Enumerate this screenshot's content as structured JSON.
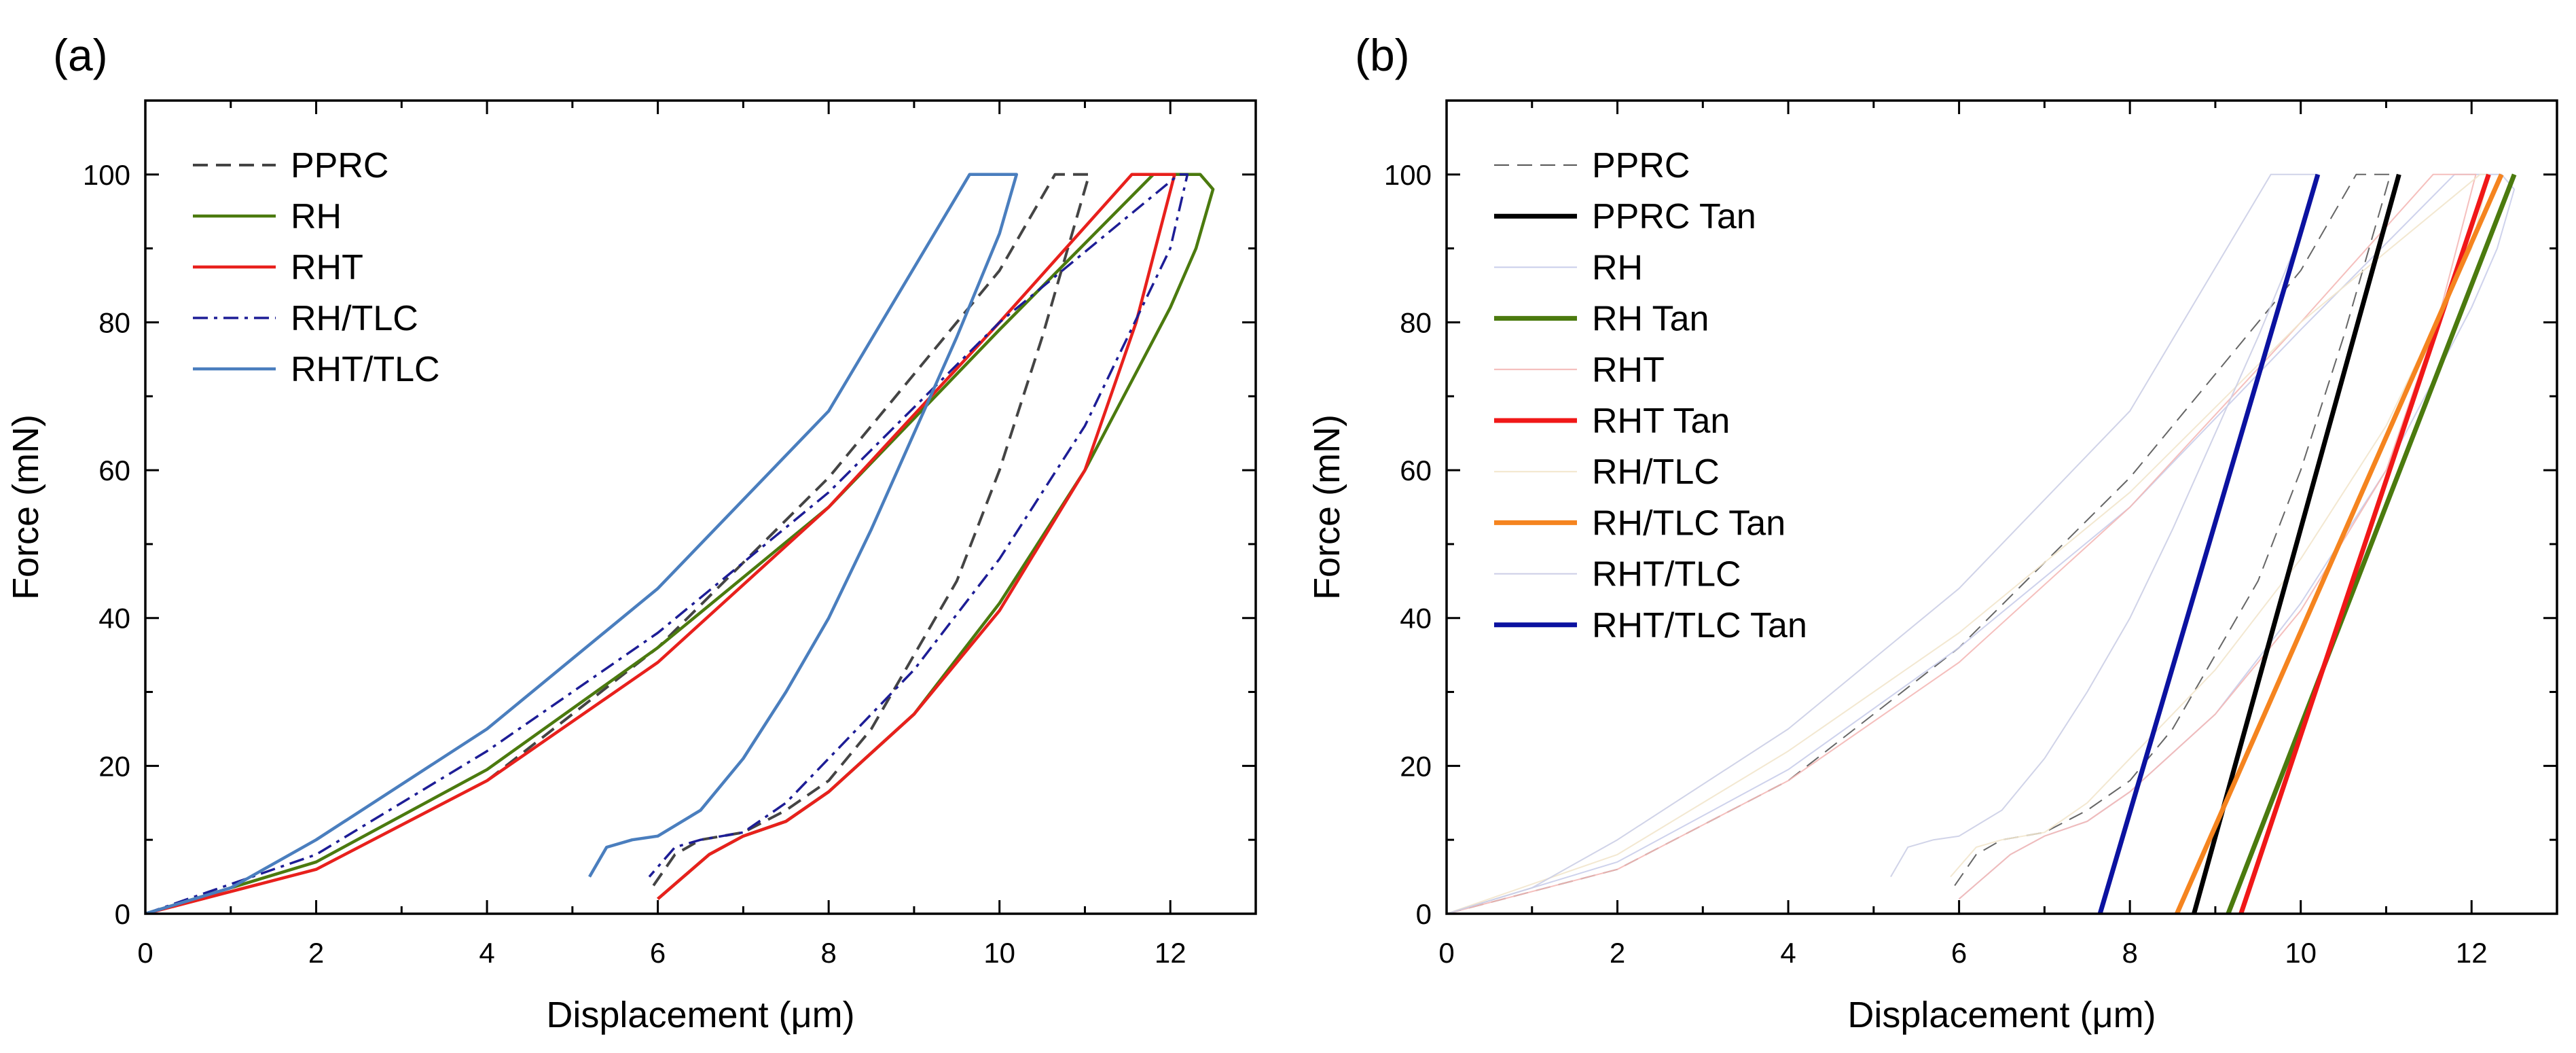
{
  "chart_data": [
    {
      "type": "line",
      "panel_label": "(a)",
      "xlabel": "Displacement (μm)",
      "ylabel": "Force (mN)",
      "xlim": [
        0,
        13
      ],
      "ylim": [
        0,
        110
      ],
      "xticks": [
        "0",
        "2",
        "4",
        "6",
        "8",
        "10",
        "12"
      ],
      "yticks": [
        "0",
        "20",
        "40",
        "60",
        "80",
        "100"
      ],
      "legend_position": "top-left",
      "series": [
        {
          "name": "PPRC",
          "color": "#444444",
          "dash": "dashed",
          "width": 4,
          "loading": [
            [
              0,
              0
            ],
            [
              2,
              6
            ],
            [
              4,
              18
            ],
            [
              6,
              36
            ],
            [
              8,
              59
            ],
            [
              10,
              87
            ],
            [
              10.65,
              100
            ]
          ],
          "hold": [
            [
              10.65,
              100
            ],
            [
              11.05,
              100
            ]
          ],
          "unloading": [
            [
              11.05,
              100
            ],
            [
              10.8,
              90
            ],
            [
              10.5,
              78
            ],
            [
              10,
              60
            ],
            [
              9.5,
              45
            ],
            [
              9,
              35
            ],
            [
              8.5,
              25
            ],
            [
              8,
              18
            ],
            [
              7.5,
              14
            ],
            [
              7,
              11
            ],
            [
              6.5,
              10
            ],
            [
              6.2,
              8
            ],
            [
              5.9,
              3
            ]
          ]
        },
        {
          "name": "RH",
          "color": "#4B7A0E",
          "dash": "solid",
          "width": 4.5,
          "loading": [
            [
              0,
              0
            ],
            [
              2,
              7
            ],
            [
              4,
              19.5
            ],
            [
              6,
              36
            ],
            [
              8,
              55
            ],
            [
              10,
              79
            ],
            [
              11.8,
              100
            ]
          ],
          "hold": [
            [
              11.8,
              100
            ],
            [
              12.35,
              100
            ]
          ],
          "unloading": [
            [
              12.35,
              100
            ],
            [
              12.5,
              98
            ],
            [
              12.3,
              90
            ],
            [
              12,
              82
            ],
            [
              11,
              60
            ],
            [
              10,
              42
            ],
            [
              9,
              27
            ],
            [
              8,
              16.5
            ],
            [
              7.5,
              12.5
            ],
            [
              7,
              10.5
            ],
            [
              6.6,
              8
            ],
            [
              6.3,
              5
            ],
            [
              6,
              2
            ]
          ]
        },
        {
          "name": "RHT",
          "color": "#E8201C",
          "dash": "solid",
          "width": 4.5,
          "loading": [
            [
              0,
              0
            ],
            [
              2,
              6
            ],
            [
              4,
              18
            ],
            [
              6,
              34
            ],
            [
              8,
              55
            ],
            [
              10,
              80
            ],
            [
              11.55,
              100
            ]
          ],
          "hold": [
            [
              11.55,
              100
            ],
            [
              12.05,
              100
            ]
          ],
          "unloading": [
            [
              12.05,
              100
            ],
            [
              11.6,
              80
            ],
            [
              11,
              60
            ],
            [
              10,
              41
            ],
            [
              9,
              27
            ],
            [
              8,
              16.5
            ],
            [
              7.5,
              12.5
            ],
            [
              7,
              10.5
            ],
            [
              6.6,
              8
            ],
            [
              6.3,
              5
            ],
            [
              6,
              2
            ]
          ]
        },
        {
          "name": "RH/TLC",
          "color": "#1D1D96",
          "dash": "dashdot",
          "width": 3.5,
          "loading": [
            [
              0,
              0
            ],
            [
              2,
              8
            ],
            [
              4,
              22
            ],
            [
              6,
              38
            ],
            [
              8,
              57
            ],
            [
              10,
              80
            ],
            [
              12.1,
              100
            ]
          ],
          "hold": [
            [
              12.1,
              100
            ],
            [
              12.2,
              100
            ]
          ],
          "unloading": [
            [
              12.2,
              100
            ],
            [
              12,
              90
            ],
            [
              11,
              66
            ],
            [
              10,
              48
            ],
            [
              9,
              33
            ],
            [
              8,
              21
            ],
            [
              7.5,
              15
            ],
            [
              7,
              11
            ],
            [
              6.5,
              10
            ],
            [
              6.2,
              9
            ],
            [
              5.9,
              5
            ]
          ]
        },
        {
          "name": "RHT/TLC",
          "color": "#4A7EBE",
          "dash": "solid",
          "width": 4.5,
          "loading": [
            [
              0,
              0
            ],
            [
              1,
              3.5
            ],
            [
              2,
              10
            ],
            [
              4,
              25
            ],
            [
              6,
              44
            ],
            [
              8,
              68
            ],
            [
              9.65,
              100
            ]
          ],
          "hold": [
            [
              9.65,
              100
            ],
            [
              10.2,
              100
            ]
          ],
          "unloading": [
            [
              10.2,
              100
            ],
            [
              10,
              92
            ],
            [
              9.5,
              78
            ],
            [
              9,
              65
            ],
            [
              8.5,
              52
            ],
            [
              8,
              40
            ],
            [
              7.5,
              30
            ],
            [
              7,
              21
            ],
            [
              6.5,
              14
            ],
            [
              6,
              10.5
            ],
            [
              5.7,
              10
            ],
            [
              5.4,
              9
            ],
            [
              5.2,
              5
            ]
          ]
        }
      ]
    },
    {
      "type": "line",
      "panel_label": "(b)",
      "xlabel": "Displacement (μm)",
      "ylabel": "Force (mN)",
      "xlim": [
        0,
        13
      ],
      "ylim": [
        0,
        110
      ],
      "xticks": [
        "0",
        "2",
        "4",
        "6",
        "8",
        "10",
        "12"
      ],
      "yticks": [
        "0",
        "20",
        "40",
        "60",
        "80",
        "100"
      ],
      "legend_position": "top-left",
      "series": [
        {
          "name": "PPRC",
          "color": "#555555",
          "dash": "dashed",
          "width": 2,
          "faint": true,
          "curve_of": "PPRC"
        },
        {
          "name": "PPRC Tan",
          "color": "#000000",
          "dash": "solid",
          "width": 7,
          "tangent": [
            [
              8.75,
              0
            ],
            [
              11.15,
              100
            ]
          ]
        },
        {
          "name": "RH",
          "color": "#C9CDEA",
          "dash": "solid",
          "width": 2,
          "faint": true,
          "curve_of": "RH"
        },
        {
          "name": "RH Tan",
          "color": "#4B7A0E",
          "dash": "solid",
          "width": 7,
          "tangent": [
            [
              9.15,
              0
            ],
            [
              12.5,
              100
            ]
          ]
        },
        {
          "name": "RHT",
          "color": "#F4B8B6",
          "dash": "solid",
          "width": 2,
          "faint": true,
          "curve_of": "RHT"
        },
        {
          "name": "RHT Tan",
          "color": "#F01818",
          "dash": "solid",
          "width": 7,
          "tangent": [
            [
              9.3,
              0
            ],
            [
              12.2,
              100
            ]
          ]
        },
        {
          "name": "RH/TLC",
          "color": "#F2E6CC",
          "dash": "solid",
          "width": 2,
          "faint": true,
          "curve_of": "RH/TLC"
        },
        {
          "name": "RH/TLC Tan",
          "color": "#F5841F",
          "dash": "solid",
          "width": 7,
          "tangent": [
            [
              8.55,
              0
            ],
            [
              12.35,
              100
            ]
          ]
        },
        {
          "name": "RHT/TLC",
          "color": "#CBCEE6",
          "dash": "solid",
          "width": 2,
          "faint": true,
          "curve_of": "RHT/TLC"
        },
        {
          "name": "RHT/TLC Tan",
          "color": "#0B12A0",
          "dash": "solid",
          "width": 7,
          "tangent": [
            [
              7.65,
              0
            ],
            [
              10.2,
              100
            ]
          ]
        }
      ]
    }
  ]
}
